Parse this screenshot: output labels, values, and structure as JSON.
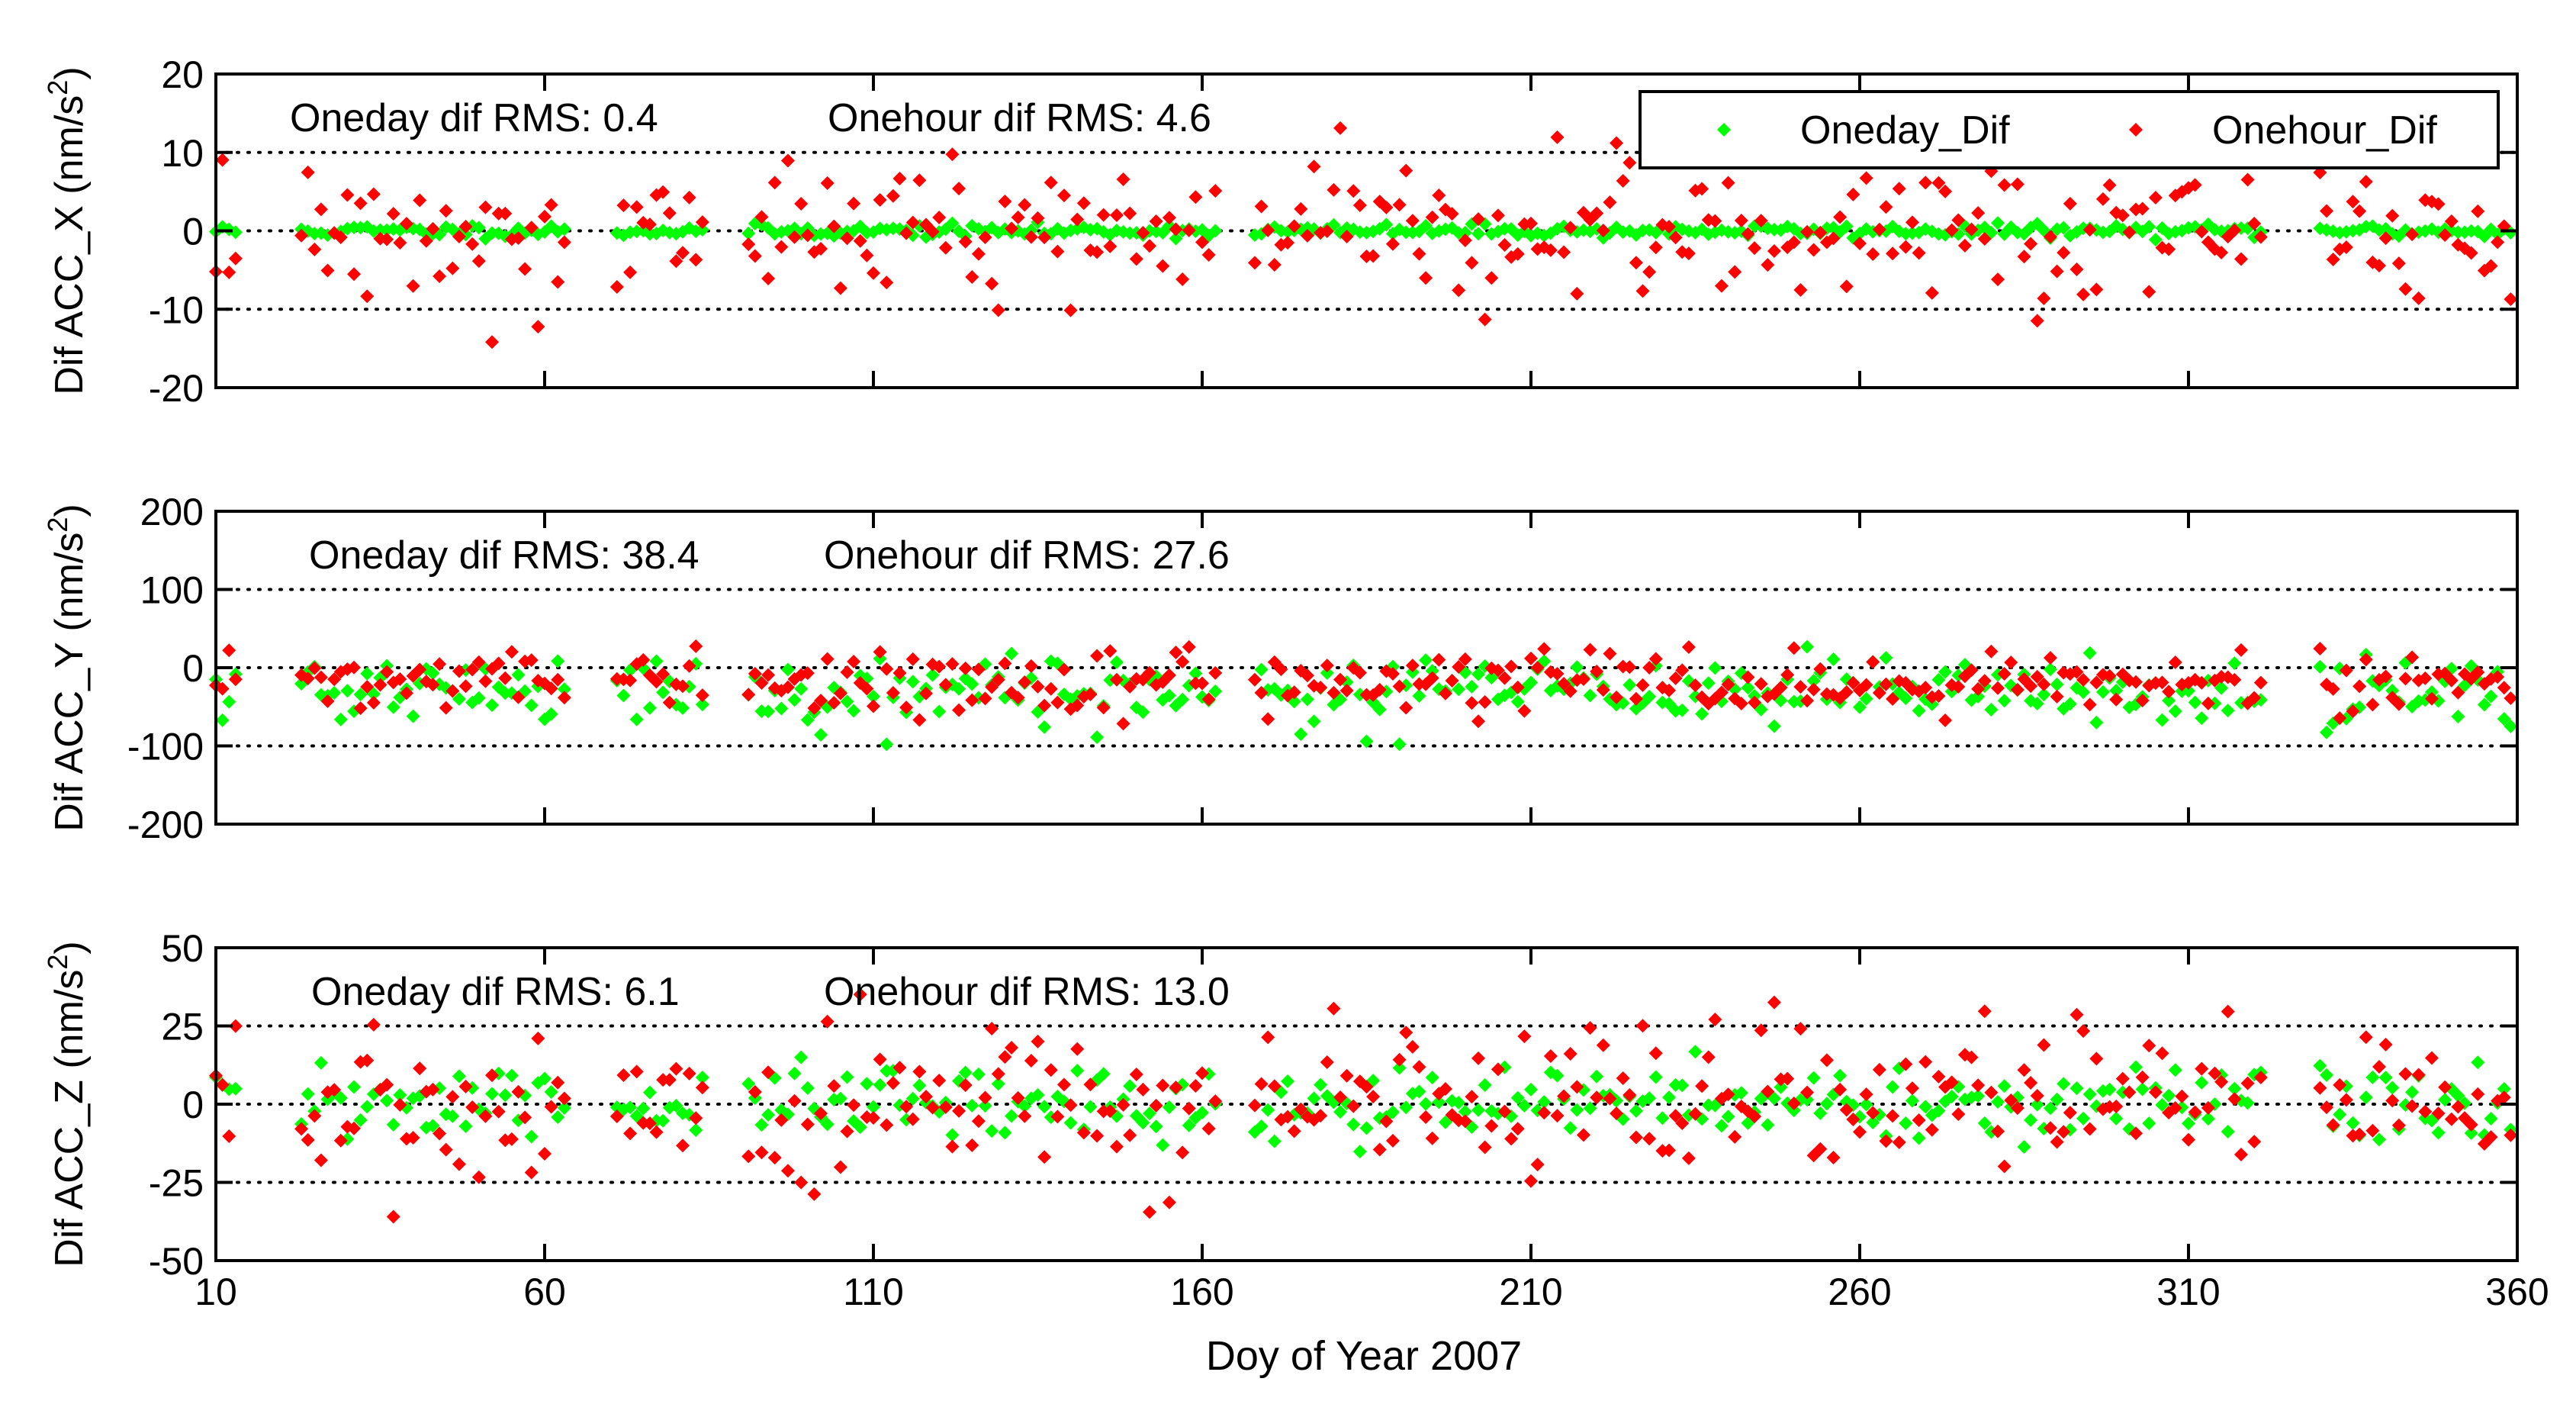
{
  "figure": {
    "xlabel": "Doy of Year 2007",
    "legend": {
      "placement": "top-right of first panel",
      "entries": [
        {
          "label": "Oneday_Dif",
          "color": "#00ff00"
        },
        {
          "label": "Onehour_Dif",
          "color": "#ff0000"
        }
      ]
    }
  },
  "chart_data": [
    {
      "type": "scatter",
      "ylabel_main": "Dif ACC_X (nm/s",
      "ylabel_sup": "2",
      "ylabel_tail": ")",
      "xlim": [
        10,
        360
      ],
      "ylim": [
        -20,
        20
      ],
      "xticks": [
        10,
        60,
        110,
        160,
        210,
        260,
        310,
        360
      ],
      "yticks": [
        20,
        10,
        0,
        -10,
        -20
      ],
      "dotted_lines": [
        10,
        0,
        -10
      ],
      "annotations": [
        "Oneday dif RMS: 0.4",
        "Onehour dif RMS: 4.6"
      ],
      "series": [
        {
          "name": "Oneday_Dif",
          "color": "#00ff00",
          "sd": 0.4,
          "seed": 11,
          "clip": 3
        },
        {
          "name": "Onehour_Dif",
          "color": "#ff0000",
          "sd": 4.6,
          "seed": 12,
          "clip": 17
        }
      ]
    },
    {
      "type": "scatter",
      "ylabel_main": "Dif ACC_Y (nm/s",
      "ylabel_sup": "2",
      "ylabel_tail": ")",
      "xlim": [
        10,
        360
      ],
      "ylim": [
        -200,
        200
      ],
      "xticks": [
        10,
        60,
        110,
        160,
        210,
        260,
        310,
        360
      ],
      "yticks": [
        200,
        100,
        0,
        -100,
        -200
      ],
      "dotted_lines": [
        100,
        0,
        -100
      ],
      "annotations": [
        "Oneday dif RMS: 38.4",
        "Onehour dif RMS: 27.6"
      ],
      "series": [
        {
          "name": "Oneday_Dif",
          "color": "#00ff00",
          "mean": -30,
          "sd": 22,
          "seed": 21,
          "clip": 100
        },
        {
          "name": "Onehour_Dif",
          "color": "#ff0000",
          "mean": -18,
          "sd": 18,
          "seed": 22,
          "clip": 80
        }
      ]
    },
    {
      "type": "scatter",
      "ylabel_main": "Dif ACC_Z (nm/s",
      "ylabel_sup": "2",
      "ylabel_tail": ")",
      "xlim": [
        10,
        360
      ],
      "ylim": [
        -50,
        50
      ],
      "xticks": [
        10,
        60,
        110,
        160,
        210,
        260,
        310,
        360
      ],
      "yticks": [
        50,
        25,
        0,
        -25,
        -50
      ],
      "dotted_lines": [
        25,
        0,
        -25
      ],
      "annotations": [
        "Oneday dif RMS: 6.1",
        "Onehour dif RMS: 13.0"
      ],
      "series": [
        {
          "name": "Oneday_Dif",
          "color": "#00ff00",
          "sd": 6.1,
          "seed": 31,
          "clip": 36
        },
        {
          "name": "Onehour_Dif",
          "color": "#ff0000",
          "sd": 13.0,
          "seed": 32,
          "clip": 38
        }
      ]
    }
  ],
  "data_gaps": [
    [
      14,
      22
    ],
    [
      64,
      70
    ],
    [
      85,
      90
    ],
    [
      163,
      167
    ],
    [
      322,
      329
    ]
  ],
  "sample_days_from": 10,
  "sample_days_to": 359
}
